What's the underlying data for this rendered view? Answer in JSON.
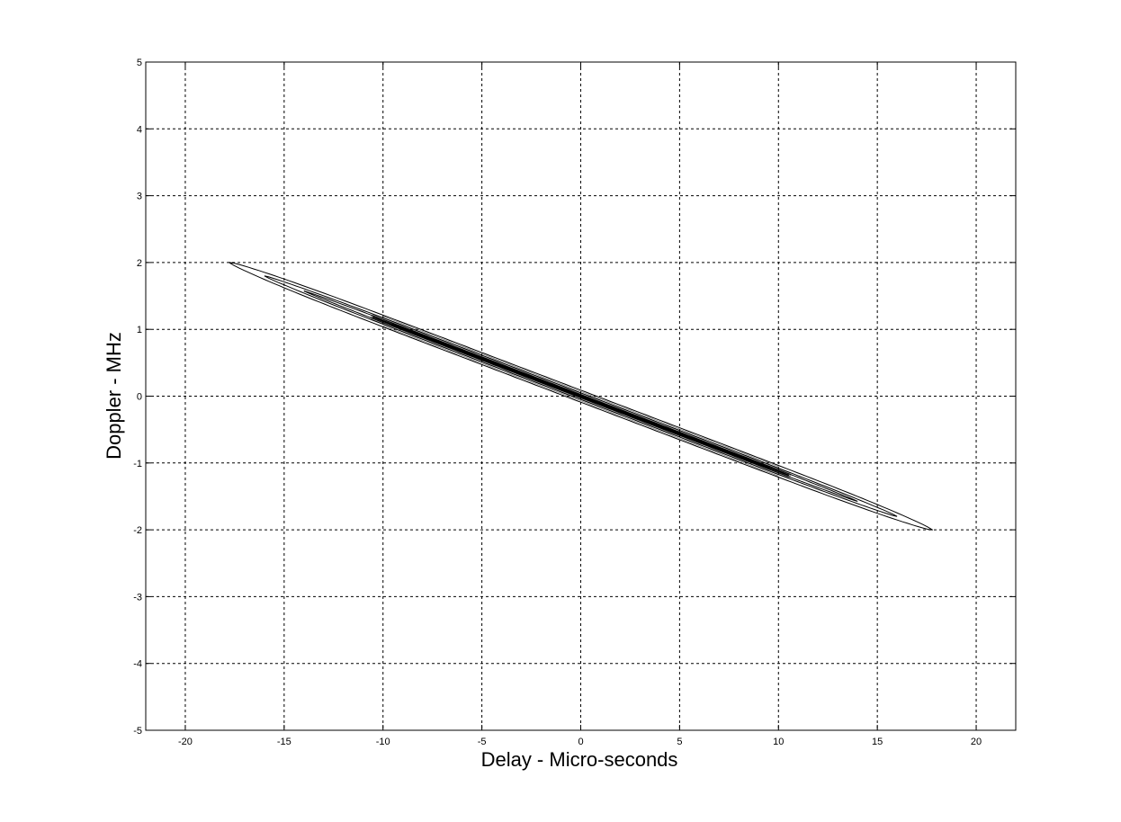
{
  "chart_data": {
    "type": "contour",
    "title": "",
    "xlabel": "Delay - Micro-seconds",
    "ylabel": "Doppler - MHz",
    "xlim": [
      -22,
      22
    ],
    "ylim": [
      -5,
      5
    ],
    "xticks": [
      -20,
      -15,
      -10,
      -5,
      0,
      5,
      10,
      15,
      20
    ],
    "yticks": [
      -5,
      -4,
      -3,
      -2,
      -1,
      0,
      1,
      2,
      3,
      4,
      5
    ],
    "xtick_labels": [
      "-20",
      "-15",
      "-10",
      "-5",
      "0",
      "5",
      "10",
      "15",
      "20"
    ],
    "ytick_labels": [
      "-5",
      "-4",
      "-3",
      "-2",
      "-1",
      "0",
      "1",
      "2",
      "3",
      "4",
      "5"
    ],
    "grid": true,
    "line_color": "#000000",
    "ridge": {
      "slope_mhz_per_us": -0.1125,
      "intercept_mhz": 0
    },
    "contour_levels": [
      {
        "name": "outer",
        "x_range": [
          -17.8,
          17.8
        ],
        "half_width_mhz": 0.09
      },
      {
        "name": "middle",
        "x_range": [
          -16,
          16
        ],
        "half_width_mhz": 0.05
      },
      {
        "name": "inner",
        "x_range": [
          -14,
          14
        ],
        "half_width_mhz": 0.025
      },
      {
        "name": "core",
        "x_range": [
          -10.5,
          10.5
        ],
        "half_width_mhz": 0.012
      }
    ]
  }
}
